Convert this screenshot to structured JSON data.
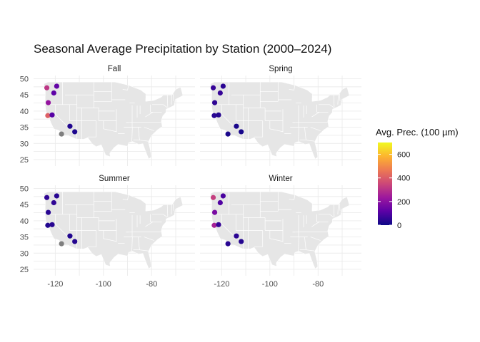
{
  "title": "Seasonal Average Precipitation by Station (2000–2024)",
  "chart_data": {
    "type": "scatter",
    "subtype": "faceted map",
    "title": "Seasonal Average Precipitation by Station (2000–2024)",
    "xlabel": "",
    "ylabel": "",
    "xlim": [
      -129,
      -62
    ],
    "ylim": [
      23,
      51
    ],
    "x_ticks": [
      -120,
      -100,
      -80
    ],
    "y_ticks": [
      25,
      30,
      35,
      40,
      45,
      50
    ],
    "grid": true,
    "legend_position": "right",
    "colorbar": {
      "title": "Avg. Prec. (100 µm)",
      "range": [
        0,
        700
      ],
      "ticks": [
        0,
        200,
        400,
        600
      ],
      "palette": [
        "#0d0887",
        "#5c01a6",
        "#9c179e",
        "#cc4778",
        "#ed7953",
        "#fdb42f",
        "#f0f921"
      ],
      "na_color": "#7f7f7f"
    },
    "facets": [
      {
        "label": "Fall",
        "points": [
          {
            "lon": -123.5,
            "lat": 47.2,
            "value": 310
          },
          {
            "lon": -119.4,
            "lat": 47.7,
            "value": 130
          },
          {
            "lon": -120.6,
            "lat": 45.6,
            "value": 120
          },
          {
            "lon": -122.9,
            "lat": 42.6,
            "value": 220
          },
          {
            "lon": -123.1,
            "lat": 38.6,
            "value": 410
          },
          {
            "lon": -121.3,
            "lat": 38.8,
            "value": 110
          },
          {
            "lon": -117.4,
            "lat": 32.9,
            "value": null
          },
          {
            "lon": -113.9,
            "lat": 35.3,
            "value": 30
          },
          {
            "lon": -111.9,
            "lat": 33.6,
            "value": 25
          }
        ]
      },
      {
        "label": "Spring",
        "points": [
          {
            "lon": -123.5,
            "lat": 47.2,
            "value": 60
          },
          {
            "lon": -119.4,
            "lat": 47.7,
            "value": 45
          },
          {
            "lon": -120.6,
            "lat": 45.6,
            "value": 60
          },
          {
            "lon": -122.9,
            "lat": 42.6,
            "value": 50
          },
          {
            "lon": -123.1,
            "lat": 38.6,
            "value": 40
          },
          {
            "lon": -121.3,
            "lat": 38.8,
            "value": 35
          },
          {
            "lon": -117.4,
            "lat": 32.9,
            "value": 20
          },
          {
            "lon": -113.9,
            "lat": 35.3,
            "value": 20
          },
          {
            "lon": -111.9,
            "lat": 33.6,
            "value": 15
          }
        ]
      },
      {
        "label": "Summer",
        "points": [
          {
            "lon": -123.5,
            "lat": 47.2,
            "value": 50
          },
          {
            "lon": -119.4,
            "lat": 47.7,
            "value": 40
          },
          {
            "lon": -120.6,
            "lat": 45.6,
            "value": 50
          },
          {
            "lon": -122.9,
            "lat": 42.6,
            "value": 40
          },
          {
            "lon": -123.1,
            "lat": 38.6,
            "value": 30
          },
          {
            "lon": -121.3,
            "lat": 38.8,
            "value": 40
          },
          {
            "lon": -117.4,
            "lat": 32.9,
            "value": null
          },
          {
            "lon": -113.9,
            "lat": 35.3,
            "value": 30
          },
          {
            "lon": -111.9,
            "lat": 33.6,
            "value": 35
          }
        ]
      },
      {
        "label": "Winter",
        "points": [
          {
            "lon": -123.5,
            "lat": 47.2,
            "value": 330
          },
          {
            "lon": -119.4,
            "lat": 47.7,
            "value": 90
          },
          {
            "lon": -120.6,
            "lat": 45.6,
            "value": 100
          },
          {
            "lon": -122.9,
            "lat": 42.6,
            "value": 170
          },
          {
            "lon": -123.1,
            "lat": 38.6,
            "value": 260
          },
          {
            "lon": -121.3,
            "lat": 38.8,
            "value": 60
          },
          {
            "lon": -117.4,
            "lat": 32.9,
            "value": 40
          },
          {
            "lon": -113.9,
            "lat": 35.3,
            "value": 45
          },
          {
            "lon": -111.9,
            "lat": 33.6,
            "value": 35
          }
        ]
      }
    ]
  }
}
